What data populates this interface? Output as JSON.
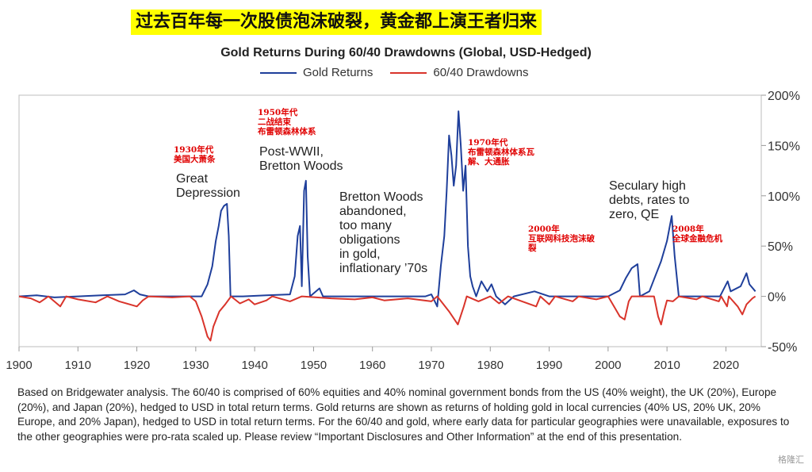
{
  "banner": "过去百年每一次股债泡沫破裂，黄金都上演王者归来",
  "watermark": "格隆汇",
  "footnote": "Based on Bridgewater analysis. The 60/40 is comprised of 60% equities and 40% nominal government bonds from the US (40% weight), the UK (20%), Europe (20%), and Japan (20%), hedged to USD in total return terms. Gold returns are shown as returns of holding gold in local currencies (40% US, 20% UK, 20% Europe, and 20% Japan), hedged to USD in total return terms. For the 60/40 and gold, where early data for particular geographies were unavailable, exposures to the other geographies were pro-rata scaled up. Please review “Important Disclosures and Other Information” at the end of this presentation.",
  "chart_data": {
    "type": "line",
    "title": "Gold Returns During 60/40 Drawdowns (Global, USD-Hedged)",
    "xlim": [
      1900,
      2026
    ],
    "ylim": [
      -0.5,
      2.0
    ],
    "x_ticks": [
      "1900",
      "1910",
      "1920",
      "1930",
      "1940",
      "1950",
      "1960",
      "1970",
      "1980",
      "1990",
      "2000",
      "2010",
      "2020"
    ],
    "y_ticks": [
      "200%",
      "150%",
      "100%",
      "50%",
      "0%",
      "-50%"
    ],
    "legend_position": "top-center",
    "series": [
      {
        "name": "Gold Returns",
        "color": "#1f3f9b",
        "points": [
          [
            1900,
            0
          ],
          [
            1903,
            0.01
          ],
          [
            1906,
            -0.01
          ],
          [
            1910,
            0
          ],
          [
            1914,
            0.01
          ],
          [
            1918,
            0.02
          ],
          [
            1919.5,
            0.06
          ],
          [
            1920.5,
            0.02
          ],
          [
            1922,
            0
          ],
          [
            1925,
            0
          ],
          [
            1928,
            0
          ],
          [
            1931,
            0
          ],
          [
            1932,
            0.12
          ],
          [
            1932.8,
            0.3
          ],
          [
            1933.4,
            0.55
          ],
          [
            1933.9,
            0.7
          ],
          [
            1934.3,
            0.85
          ],
          [
            1934.8,
            0.9
          ],
          [
            1935.3,
            0.92
          ],
          [
            1935.6,
            0.6
          ],
          [
            1935.9,
            0
          ],
          [
            1938,
            0
          ],
          [
            1942,
            0.01
          ],
          [
            1946,
            0.02
          ],
          [
            1946.8,
            0.2
          ],
          [
            1947.3,
            0.6
          ],
          [
            1947.7,
            0.7
          ],
          [
            1948,
            0.1
          ],
          [
            1948.4,
            1.05
          ],
          [
            1948.7,
            1.15
          ],
          [
            1949,
            0.4
          ],
          [
            1949.4,
            0
          ],
          [
            1951,
            0.08
          ],
          [
            1951.6,
            0
          ],
          [
            1955,
            0
          ],
          [
            1960,
            0
          ],
          [
            1965,
            0
          ],
          [
            1969,
            0
          ],
          [
            1970,
            0.02
          ],
          [
            1971,
            -0.1
          ],
          [
            1971.6,
            0.3
          ],
          [
            1972.2,
            0.6
          ],
          [
            1972.6,
            1.05
          ],
          [
            1973,
            1.6
          ],
          [
            1973.4,
            1.4
          ],
          [
            1973.8,
            1.1
          ],
          [
            1974.2,
            1.3
          ],
          [
            1974.6,
            1.84
          ],
          [
            1975,
            1.5
          ],
          [
            1975.4,
            1.05
          ],
          [
            1975.8,
            1.3
          ],
          [
            1976.2,
            0.5
          ],
          [
            1976.6,
            0.2
          ],
          [
            1977,
            0.1
          ],
          [
            1977.6,
            0
          ],
          [
            1978.5,
            0.15
          ],
          [
            1979.5,
            0.05
          ],
          [
            1980.2,
            0.12
          ],
          [
            1981,
            0
          ],
          [
            1982.5,
            -0.08
          ],
          [
            1984,
            0
          ],
          [
            1987.5,
            0.05
          ],
          [
            1990,
            0
          ],
          [
            1995,
            0
          ],
          [
            2000,
            0
          ],
          [
            2002,
            0.06
          ],
          [
            2003,
            0.18
          ],
          [
            2004,
            0.28
          ],
          [
            2005,
            0.32
          ],
          [
            2005.4,
            0
          ],
          [
            2007,
            0.05
          ],
          [
            2008,
            0.2
          ],
          [
            2009,
            0.35
          ],
          [
            2010,
            0.55
          ],
          [
            2010.8,
            0.8
          ],
          [
            2011.3,
            0.4
          ],
          [
            2012,
            0
          ],
          [
            2015,
            0
          ],
          [
            2019,
            0
          ],
          [
            2020.3,
            0.15
          ],
          [
            2020.8,
            0.05
          ],
          [
            2022.5,
            0.1
          ],
          [
            2023.5,
            0.23
          ],
          [
            2024,
            0.12
          ],
          [
            2025,
            0.05
          ]
        ]
      },
      {
        "name": "60/40 Drawdowns",
        "color": "#d9342b",
        "points": [
          [
            1900,
            0
          ],
          [
            1902,
            -0.02
          ],
          [
            1903.5,
            -0.06
          ],
          [
            1905,
            0
          ],
          [
            1907,
            -0.1
          ],
          [
            1908,
            0
          ],
          [
            1910,
            -0.03
          ],
          [
            1913,
            -0.06
          ],
          [
            1915,
            0
          ],
          [
            1917,
            -0.05
          ],
          [
            1920,
            -0.1
          ],
          [
            1921,
            -0.04
          ],
          [
            1922,
            0
          ],
          [
            1926,
            -0.01
          ],
          [
            1929,
            0
          ],
          [
            1930,
            -0.05
          ],
          [
            1931,
            -0.2
          ],
          [
            1932,
            -0.4
          ],
          [
            1932.5,
            -0.44
          ],
          [
            1933,
            -0.3
          ],
          [
            1934,
            -0.15
          ],
          [
            1935,
            -0.08
          ],
          [
            1936,
            0
          ],
          [
            1937.5,
            -0.07
          ],
          [
            1939,
            -0.03
          ],
          [
            1940,
            -0.08
          ],
          [
            1942,
            -0.04
          ],
          [
            1943,
            0
          ],
          [
            1946,
            -0.05
          ],
          [
            1948,
            0
          ],
          [
            1953,
            -0.02
          ],
          [
            1957,
            -0.03
          ],
          [
            1960,
            -0.01
          ],
          [
            1962,
            -0.04
          ],
          [
            1966,
            -0.02
          ],
          [
            1970,
            -0.05
          ],
          [
            1971,
            0
          ],
          [
            1973,
            -0.15
          ],
          [
            1974.5,
            -0.28
          ],
          [
            1975.5,
            -0.1
          ],
          [
            1976,
            0
          ],
          [
            1978,
            -0.05
          ],
          [
            1980,
            0
          ],
          [
            1981.5,
            -0.07
          ],
          [
            1983,
            0
          ],
          [
            1987.8,
            -0.1
          ],
          [
            1988.5,
            0
          ],
          [
            1990,
            -0.08
          ],
          [
            1991,
            0
          ],
          [
            1994,
            -0.05
          ],
          [
            1995,
            0
          ],
          [
            1998,
            -0.03
          ],
          [
            2000,
            0
          ],
          [
            2001,
            -0.1
          ],
          [
            2002,
            -0.2
          ],
          [
            2002.8,
            -0.23
          ],
          [
            2003.5,
            -0.05
          ],
          [
            2004,
            0
          ],
          [
            2007.8,
            0
          ],
          [
            2008.5,
            -0.2
          ],
          [
            2009,
            -0.28
          ],
          [
            2009.5,
            -0.15
          ],
          [
            2010,
            -0.04
          ],
          [
            2011,
            -0.05
          ],
          [
            2012,
            0
          ],
          [
            2015,
            -0.03
          ],
          [
            2016,
            0
          ],
          [
            2018.8,
            -0.05
          ],
          [
            2019.2,
            0
          ],
          [
            2020.2,
            -0.1
          ],
          [
            2020.5,
            0
          ],
          [
            2022,
            -0.1
          ],
          [
            2022.8,
            -0.18
          ],
          [
            2023.5,
            -0.08
          ],
          [
            2024.5,
            -0.02
          ],
          [
            2025,
            0
          ]
        ]
      }
    ],
    "annotations": [
      {
        "text_cn": [
          "1930年代",
          "美国大萧条"
        ],
        "text_en": [
          "Great",
          "Depression"
        ],
        "x": 1933.5
      },
      {
        "text_cn": [
          "1950年代",
          "二战结束",
          "布雷顿森林体系"
        ],
        "text_en": [
          "Post-WWII,",
          "Bretton Woods"
        ],
        "x": 1948
      },
      {
        "text_en": [
          "Bretton Woods",
          "abandoned,",
          "too many",
          "obligations",
          "in gold,",
          "inflationary ’70s"
        ],
        "x": 1961
      },
      {
        "text_cn": [
          "1970年代",
          "布雷顿森林体系瓦",
          "解、大通胀"
        ],
        "x": 1980
      },
      {
        "text_cn": [
          "2000年",
          "互联网科技泡沫破",
          "裂"
        ],
        "x": 2001
      },
      {
        "text_en": [
          "Seculary high",
          "debts, rates to",
          "zero, QE"
        ],
        "x": 2011
      },
      {
        "text_cn": [
          "2008年",
          "全球金融危机"
        ],
        "x": 2012
      }
    ]
  }
}
